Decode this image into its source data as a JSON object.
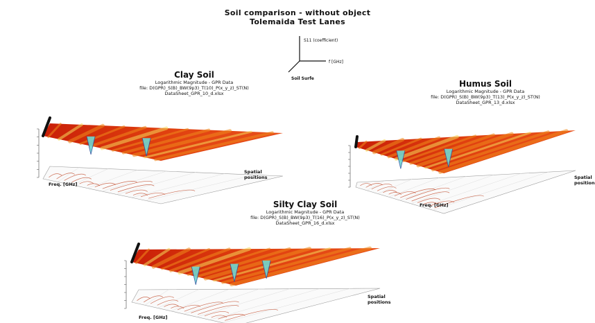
{
  "figure": {
    "title_line1": "Soil comparison - without object",
    "title_line2": "Tolemaida Test Lanes"
  },
  "legend3d": {
    "z_label": "S11 (coefficient)",
    "x_label": "f [GHz]",
    "y_label": "Soil Surfe"
  },
  "colors": {
    "surface_high": "#d42a0c",
    "surface_mid": "#f08a1c",
    "surface_low": "#f6d85a",
    "dip_cyan": "#6ed6d0",
    "dip_blue": "#2d4f9e",
    "contour": "#c04a2a",
    "edge_dark": "#111111"
  },
  "chart_data": [
    {
      "type": "surface",
      "title": "Clay Soil",
      "subtitle1": "Logarithmic Magnitude - GPR Data",
      "subtitle2": "file: D(GPR)_S(B)_BW(9p3)_T(10)_P(x_y_z)_ST(N)",
      "subtitle3": "DataSheet_GPR_10_d.xlsx",
      "xlabel": "Freq. [GHz]",
      "ylabel": "Spatial positions"
    },
    {
      "type": "surface",
      "title": "Humus Soil",
      "subtitle1": "Logarithmic Magnitude - GPR Data",
      "subtitle2": "file: D(GPR)_S(B)_BW(9p3)_T(13)_P(x_y_z)_ST(N)",
      "subtitle3": "DataSheet_GPR_13_d.xlsx",
      "xlabel": "Freq. [GHz]",
      "ylabel": "Spatial positions"
    },
    {
      "type": "surface",
      "title": "Silty Clay Soil",
      "subtitle1": "Logarithmic Magnitude - GPR Data",
      "subtitle2": "file: D(GPR)_S(B)_BW(9p3)_T(16)_P(x_y_z)_ST(N)",
      "subtitle3": "DataSheet_GPR_16_d.xlsx",
      "xlabel": "Freq. [GHz]",
      "ylabel": "Spatial positions"
    }
  ]
}
